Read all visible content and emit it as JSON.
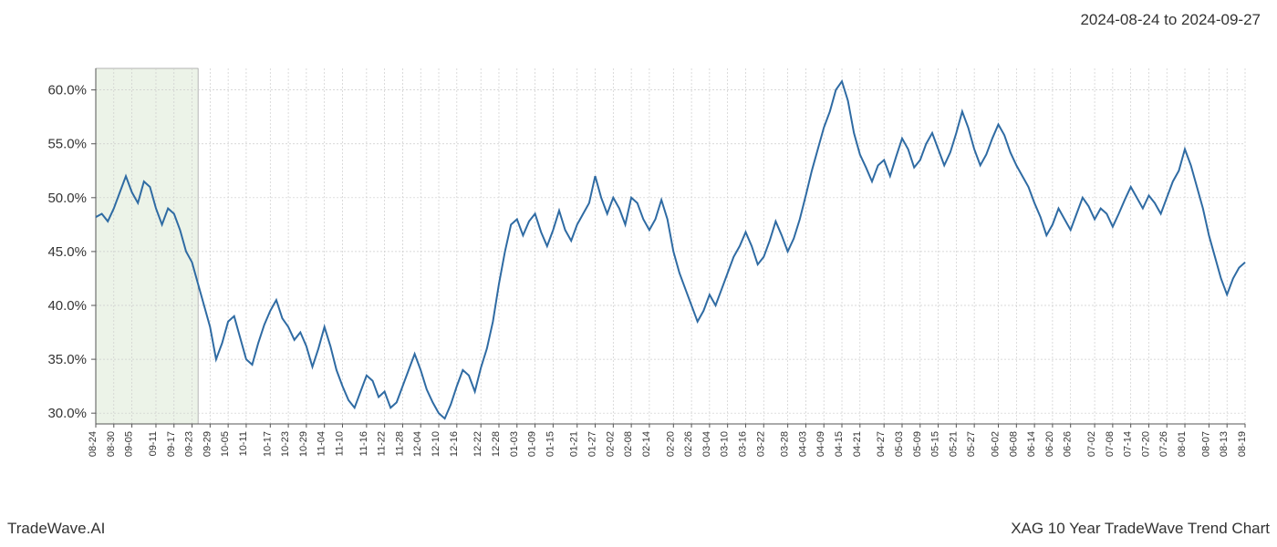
{
  "header": {
    "date_range": "2024-08-24 to 2024-09-27"
  },
  "footer": {
    "left": "TradeWave.AI",
    "right": "XAG 10 Year TradeWave Trend Chart"
  },
  "chart": {
    "type": "line",
    "background_color": "#ffffff",
    "grid_color": "#cccccc",
    "axis_color": "#555555",
    "line_color": "#2f6ba3",
    "line_width": 2,
    "highlight_band": {
      "fill": "#dce9d5",
      "opacity": 0.55,
      "x_start_idx": 0,
      "x_end_idx": 17
    },
    "y_axis": {
      "min": 29,
      "max": 62,
      "ticks": [
        30,
        35,
        40,
        45,
        50,
        55,
        60
      ],
      "tick_labels": [
        "30.0%",
        "35.0%",
        "40.0%",
        "45.0%",
        "50.0%",
        "55.0%",
        "60.0%"
      ],
      "label_fontsize": 15,
      "label_color": "#333333"
    },
    "x_axis": {
      "labels": [
        "08-24",
        "08-30",
        "09-05",
        "09-11",
        "09-17",
        "09-23",
        "09-29",
        "10-05",
        "10-11",
        "10-17",
        "10-23",
        "10-29",
        "11-04",
        "11-10",
        "11-16",
        "11-22",
        "11-28",
        "12-04",
        "12-10",
        "12-16",
        "12-22",
        "12-28",
        "01-03",
        "01-09",
        "01-15",
        "01-21",
        "01-27",
        "02-02",
        "02-08",
        "02-14",
        "02-20",
        "02-26",
        "03-04",
        "03-10",
        "03-16",
        "03-22",
        "03-28",
        "04-03",
        "04-09",
        "04-15",
        "04-21",
        "04-27",
        "05-03",
        "05-09",
        "05-15",
        "05-21",
        "05-27",
        "06-02",
        "06-08",
        "06-14",
        "06-20",
        "06-26",
        "07-02",
        "07-08",
        "07-14",
        "07-20",
        "07-26",
        "08-01",
        "08-07",
        "08-13",
        "08-19"
      ],
      "label_fontsize": 11,
      "label_rotation": 90,
      "label_color": "#333333"
    },
    "series": {
      "values": [
        48.2,
        48.5,
        47.8,
        49.0,
        50.5,
        52.0,
        50.5,
        49.5,
        51.5,
        51.0,
        49.0,
        47.5,
        49.0,
        48.5,
        47.0,
        45.0,
        44.0,
        42.0,
        40.0,
        38.0,
        35.0,
        36.5,
        38.5,
        39.0,
        37.0,
        35.0,
        34.5,
        36.5,
        38.2,
        39.5,
        40.5,
        38.8,
        38.0,
        36.8,
        37.5,
        36.2,
        34.3,
        36.0,
        38.0,
        36.2,
        34.0,
        32.5,
        31.2,
        30.5,
        32.0,
        33.5,
        33.0,
        31.5,
        32.0,
        30.5,
        31.0,
        32.5,
        34.0,
        35.5,
        34.0,
        32.2,
        31.0,
        30.0,
        29.5,
        30.8,
        32.5,
        34.0,
        33.5,
        32.0,
        34.2,
        36.0,
        38.5,
        42.0,
        45.0,
        47.5,
        48.0,
        46.5,
        47.8,
        48.5,
        46.8,
        45.5,
        47.0,
        48.8,
        47.0,
        46.0,
        47.5,
        48.5,
        49.5,
        52.0,
        50.0,
        48.5,
        50.0,
        49.0,
        47.5,
        50.0,
        49.5,
        48.0,
        47.0,
        48.0,
        49.8,
        48.0,
        45.0,
        43.0,
        41.5,
        40.0,
        38.5,
        39.5,
        41.0,
        40.0,
        41.5,
        43.0,
        44.5,
        45.5,
        46.8,
        45.5,
        43.8,
        44.5,
        46.0,
        47.8,
        46.5,
        45.0,
        46.2,
        48.0,
        50.2,
        52.5,
        54.5,
        56.5,
        58.0,
        60.0,
        60.8,
        59.0,
        56.0,
        54.0,
        52.8,
        51.5,
        53.0,
        53.5,
        52.0,
        53.8,
        55.5,
        54.5,
        52.8,
        53.5,
        55.0,
        56.0,
        54.5,
        53.0,
        54.2,
        56.0,
        58.0,
        56.5,
        54.5,
        53.0,
        54.0,
        55.5,
        56.8,
        55.8,
        54.2,
        53.0,
        52.0,
        51.0,
        49.5,
        48.2,
        46.5,
        47.5,
        49.0,
        48.0,
        47.0,
        48.5,
        50.0,
        49.2,
        48.0,
        49.0,
        48.5,
        47.3,
        48.5,
        49.8,
        51.0,
        50.0,
        49.0,
        50.2,
        49.5,
        48.5,
        50.0,
        51.5,
        52.5,
        54.5,
        53.0,
        51.0,
        49.0,
        46.5,
        44.5,
        42.5,
        41.0,
        42.5,
        43.5,
        44.0
      ]
    }
  }
}
